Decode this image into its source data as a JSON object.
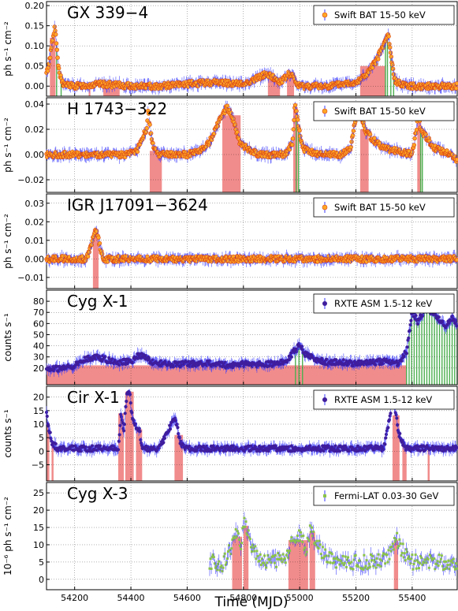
{
  "figure": {
    "xlabel": "Time (MJD)",
    "xlim": [
      54100,
      55560
    ],
    "xticks": [
      54200,
      54400,
      54600,
      54800,
      55000,
      55200,
      55400
    ],
    "colors": {
      "bat_marker": "#ffa726",
      "bat_edge": "#d84315",
      "asm_marker": "#3f1d9c",
      "fermi_marker": "#8bc34a",
      "errorbar": "#3b3bff",
      "red_band": "#f08080",
      "green_band": "#4caf50"
    }
  },
  "chart_data": [
    {
      "type": "scatter",
      "title": "GX 339−4",
      "ylabel": "ph s⁻¹ cm⁻²",
      "legend": "Swift BAT 15-50 keV",
      "legend_loc": "top-right",
      "marker": "bat",
      "ylim": [
        -0.025,
        0.21
      ],
      "yticks": [
        0.0,
        0.05,
        0.1,
        0.15,
        0.2
      ],
      "ytick_labels": [
        "0.00",
        "0.05",
        "0.10",
        "0.15",
        "0.20"
      ],
      "series": [
        {
          "x": [
            54100,
            54110,
            54118,
            54124,
            54130,
            54136,
            54145,
            54160,
            54200,
            54300,
            54400,
            54500,
            54600,
            54700,
            54800,
            54850,
            54880,
            54900,
            54925,
            54950,
            54960,
            54975,
            54990,
            55000,
            55050,
            55100,
            55150,
            55200,
            55240,
            55270,
            55290,
            55305,
            55315,
            55325,
            55340,
            55400,
            55500,
            55560
          ],
          "y": [
            0.03,
            0.06,
            0.1,
            0.13,
            0.145,
            0.1,
            0.03,
            0.005,
            0.0,
            0.005,
            0.0,
            0.0,
            0.005,
            0.01,
            0.005,
            0.02,
            0.03,
            0.025,
            0.01,
            0.02,
            0.03,
            0.025,
            0.005,
            0.0,
            0.0,
            0.0,
            0.005,
            0.01,
            0.03,
            0.06,
            0.09,
            0.11,
            0.13,
            0.07,
            0.01,
            0.0,
            0.0,
            0.0
          ]
        }
      ],
      "red_bands": [
        [
          54112,
          54132
        ],
        [
          54250,
          54256
        ],
        [
          54302,
          54360
        ],
        [
          54887,
          54930
        ],
        [
          54955,
          54980
        ],
        [
          55215,
          55305
        ]
      ],
      "green_bands": [
        [
          54136,
          54152
        ],
        [
          55305,
          55312
        ],
        [
          55324,
          55334
        ]
      ]
    },
    {
      "type": "scatter",
      "title": "H 1743−322",
      "ylabel": "ph s⁻¹ cm⁻²",
      "legend": "Swift BAT 15-50 keV",
      "legend_loc": "top-right",
      "marker": "bat",
      "ylim": [
        -0.03,
        0.045
      ],
      "yticks": [
        -0.02,
        0.0,
        0.02,
        0.04
      ],
      "ytick_labels": [
        "−0.02",
        "0.00",
        "0.02",
        "0.04"
      ],
      "series": [
        {
          "x": [
            54100,
            54150,
            54200,
            54260,
            54300,
            54380,
            54420,
            54455,
            54462,
            54468,
            54480,
            54500,
            54550,
            54600,
            54640,
            54680,
            54720,
            54742,
            54760,
            54790,
            54850,
            54900,
            54950,
            54975,
            54983,
            54995,
            55010,
            55060,
            55100,
            55150,
            55180,
            55200,
            55215,
            55230,
            55260,
            55300,
            55400,
            55415,
            55422,
            55430,
            55480,
            55540,
            55560
          ],
          "y": [
            0.0,
            0.0,
            0.0,
            0.0,
            0.0,
            0.0,
            0.002,
            0.02,
            0.035,
            0.02,
            0.005,
            0.0,
            0.0,
            0.0,
            0.002,
            0.01,
            0.03,
            0.038,
            0.03,
            0.008,
            0.0,
            0.0,
            0.0,
            0.01,
            0.04,
            0.025,
            0.005,
            0.0,
            0.0,
            0.0,
            0.005,
            0.03,
            0.035,
            0.02,
            0.012,
            0.005,
            0.0,
            0.02,
            0.035,
            0.02,
            0.005,
            0.0,
            -0.005
          ]
        }
      ],
      "red_bands": [
        [
          54467,
          54510
        ],
        [
          54725,
          54790
        ],
        [
          54977,
          54993
        ],
        [
          55215,
          55245
        ],
        [
          55418,
          55432
        ]
      ],
      "green_bands": [
        [
          54988,
          54996
        ],
        [
          55430,
          55436
        ]
      ]
    },
    {
      "type": "scatter",
      "title": "IGR J17091−3624",
      "ylabel": "ph s⁻¹ cm⁻²",
      "legend": "Swift BAT 15-50 keV",
      "legend_loc": "top-right",
      "marker": "bat",
      "ylim": [
        -0.016,
        0.035
      ],
      "yticks": [
        -0.01,
        0.0,
        0.01,
        0.02,
        0.03
      ],
      "ytick_labels": [
        "−0.01",
        "0.00",
        "0.01",
        "0.02",
        "0.03"
      ],
      "series": [
        {
          "x": [
            54100,
            54150,
            54200,
            54240,
            54255,
            54265,
            54275,
            54285,
            54300,
            54350,
            54400,
            54500,
            54600,
            54700,
            54800,
            54900,
            55000,
            55100,
            55200,
            55300,
            55400,
            55500,
            55560
          ],
          "y": [
            0.0,
            0.0,
            0.0,
            0.0,
            0.005,
            0.012,
            0.016,
            0.01,
            0.0,
            0.0,
            0.0,
            0.0,
            0.0,
            0.0,
            0.0,
            0.0,
            0.0,
            0.0,
            0.0,
            0.0,
            0.0,
            0.0,
            0.0
          ]
        }
      ],
      "red_bands": [
        [
          54265,
          54285
        ]
      ],
      "green_bands": []
    },
    {
      "type": "scatter",
      "title": "Cyg X-1",
      "ylabel": "counts  s⁻¹",
      "legend": "RXTE ASM 1.5-12 keV",
      "legend_loc": "top-right",
      "marker": "asm",
      "ylim": [
        5,
        90
      ],
      "yticks": [
        20,
        30,
        40,
        50,
        60,
        70,
        80
      ],
      "ytick_labels": [
        "20",
        "30",
        "40",
        "50",
        "60",
        "70",
        "80"
      ],
      "series": [
        {
          "x": [
            54100,
            54150,
            54200,
            54240,
            54280,
            54320,
            54360,
            54400,
            54430,
            54480,
            54550,
            54600,
            54650,
            54700,
            54750,
            54800,
            54850,
            54900,
            54950,
            54980,
            55000,
            55020,
            55050,
            55100,
            55150,
            55200,
            55250,
            55300,
            55350,
            55380,
            55400,
            55420,
            55450,
            55480,
            55500,
            55520,
            55540,
            55560
          ],
          "y": [
            20,
            19,
            22,
            28,
            30,
            27,
            25,
            26,
            32,
            25,
            23,
            24,
            24,
            24,
            22,
            24,
            23,
            24,
            25,
            35,
            40,
            33,
            28,
            25,
            25,
            24,
            25,
            26,
            24,
            35,
            70,
            62,
            75,
            68,
            63,
            58,
            65,
            60
          ]
        }
      ],
      "red_bands": [
        [
          54100,
          55380
        ]
      ],
      "green_bands": [
        [
          54985,
          55010
        ],
        [
          55380,
          55560
        ]
      ]
    },
    {
      "type": "scatter",
      "title": "Cir X-1",
      "ylabel": "counts  s⁻¹",
      "legend": "RXTE ASM 1.5-12 keV",
      "legend_loc": "top-right",
      "marker": "asm",
      "ylim": [
        -11,
        24
      ],
      "yticks": [
        -5,
        0,
        5,
        10,
        15,
        20
      ],
      "ytick_labels": [
        "−5",
        "0",
        "5",
        "10",
        "15",
        "20"
      ],
      "series": [
        {
          "x": [
            54100,
            54105,
            54112,
            54120,
            54140,
            54200,
            54300,
            54355,
            54365,
            54375,
            54385,
            54395,
            54405,
            54420,
            54430,
            54440,
            54500,
            54555,
            54565,
            54575,
            54600,
            54700,
            54800,
            54900,
            55000,
            55100,
            55200,
            55300,
            55330,
            55340,
            55350,
            55360,
            55380,
            55400,
            55500,
            55560
          ],
          "y": [
            15,
            10,
            7,
            3,
            1,
            1,
            1,
            1,
            14,
            8,
            20,
            22,
            12,
            9,
            8,
            1,
            1,
            12,
            9,
            3,
            1,
            1,
            1,
            1,
            1,
            1,
            1,
            1,
            19,
            15,
            8,
            4,
            1,
            1,
            1,
            1
          ]
        }
      ],
      "red_bands": [
        [
          54100,
          54110
        ],
        [
          54118,
          54125
        ],
        [
          54355,
          54375
        ],
        [
          54380,
          54410
        ],
        [
          54418,
          54440
        ],
        [
          54555,
          54585
        ],
        [
          55330,
          55355
        ],
        [
          55365,
          55380
        ],
        [
          55455,
          55462
        ]
      ],
      "green_bands": []
    },
    {
      "type": "scatter",
      "title": "Cyg X-3",
      "ylabel": "10⁻⁶ ph s⁻¹ cm⁻²",
      "legend": "Fermi-LAT 0.03-30 GeV",
      "legend_loc": "top-right",
      "marker": "fermi",
      "ylim": [
        -3,
        28
      ],
      "yticks": [
        0,
        5,
        10,
        15,
        20,
        25
      ],
      "ytick_labels": [
        "0",
        "5",
        "10",
        "15",
        "20",
        "25"
      ],
      "x_start": 54680,
      "series": [
        {
          "x": [
            54680,
            54700,
            54720,
            54740,
            54760,
            54775,
            54790,
            54800,
            54812,
            54830,
            54860,
            54900,
            54950,
            54975,
            54990,
            55005,
            55020,
            55040,
            55060,
            55100,
            55150,
            55200,
            55250,
            55300,
            55330,
            55345,
            55360,
            55400,
            55450,
            55500,
            55560
          ],
          "y": [
            5,
            5,
            4,
            6,
            10,
            13,
            9,
            17,
            15,
            10,
            6,
            5,
            6,
            12,
            10,
            14,
            8,
            15,
            10,
            6,
            5,
            5,
            5,
            6,
            8,
            12,
            9,
            5,
            5,
            5,
            5
          ]
        }
      ],
      "red_bands": [
        [
          54760,
          54795
        ],
        [
          54800,
          54818
        ],
        [
          54960,
          55030
        ],
        [
          55035,
          55055
        ],
        [
          55335,
          55350
        ]
      ],
      "green_bands": []
    }
  ]
}
